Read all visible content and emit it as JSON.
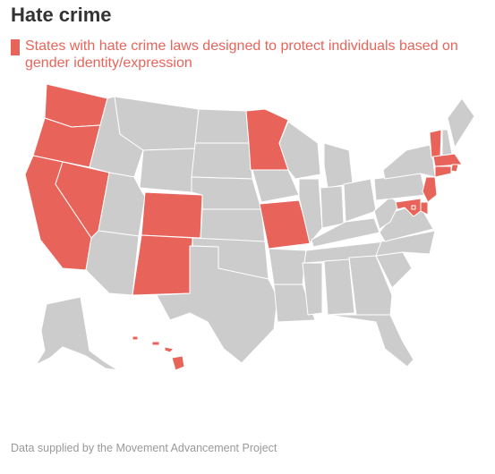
{
  "title": "Hate crime",
  "legend": {
    "label": "States with hate crime laws designed to protect individuals based on gender identity/expression",
    "color": "#e8645a"
  },
  "colors": {
    "highlighted": "#e8645a",
    "other": "#cccccc",
    "border": "#ffffff"
  },
  "highlighted_states": [
    "WA",
    "OR",
    "CA",
    "NV",
    "CO",
    "NM",
    "MN",
    "MO",
    "HI",
    "VT",
    "MA",
    "RI",
    "CT",
    "NJ",
    "DE",
    "MD",
    "DC"
  ],
  "source": "Data supplied by the Movement Advancement Project"
}
